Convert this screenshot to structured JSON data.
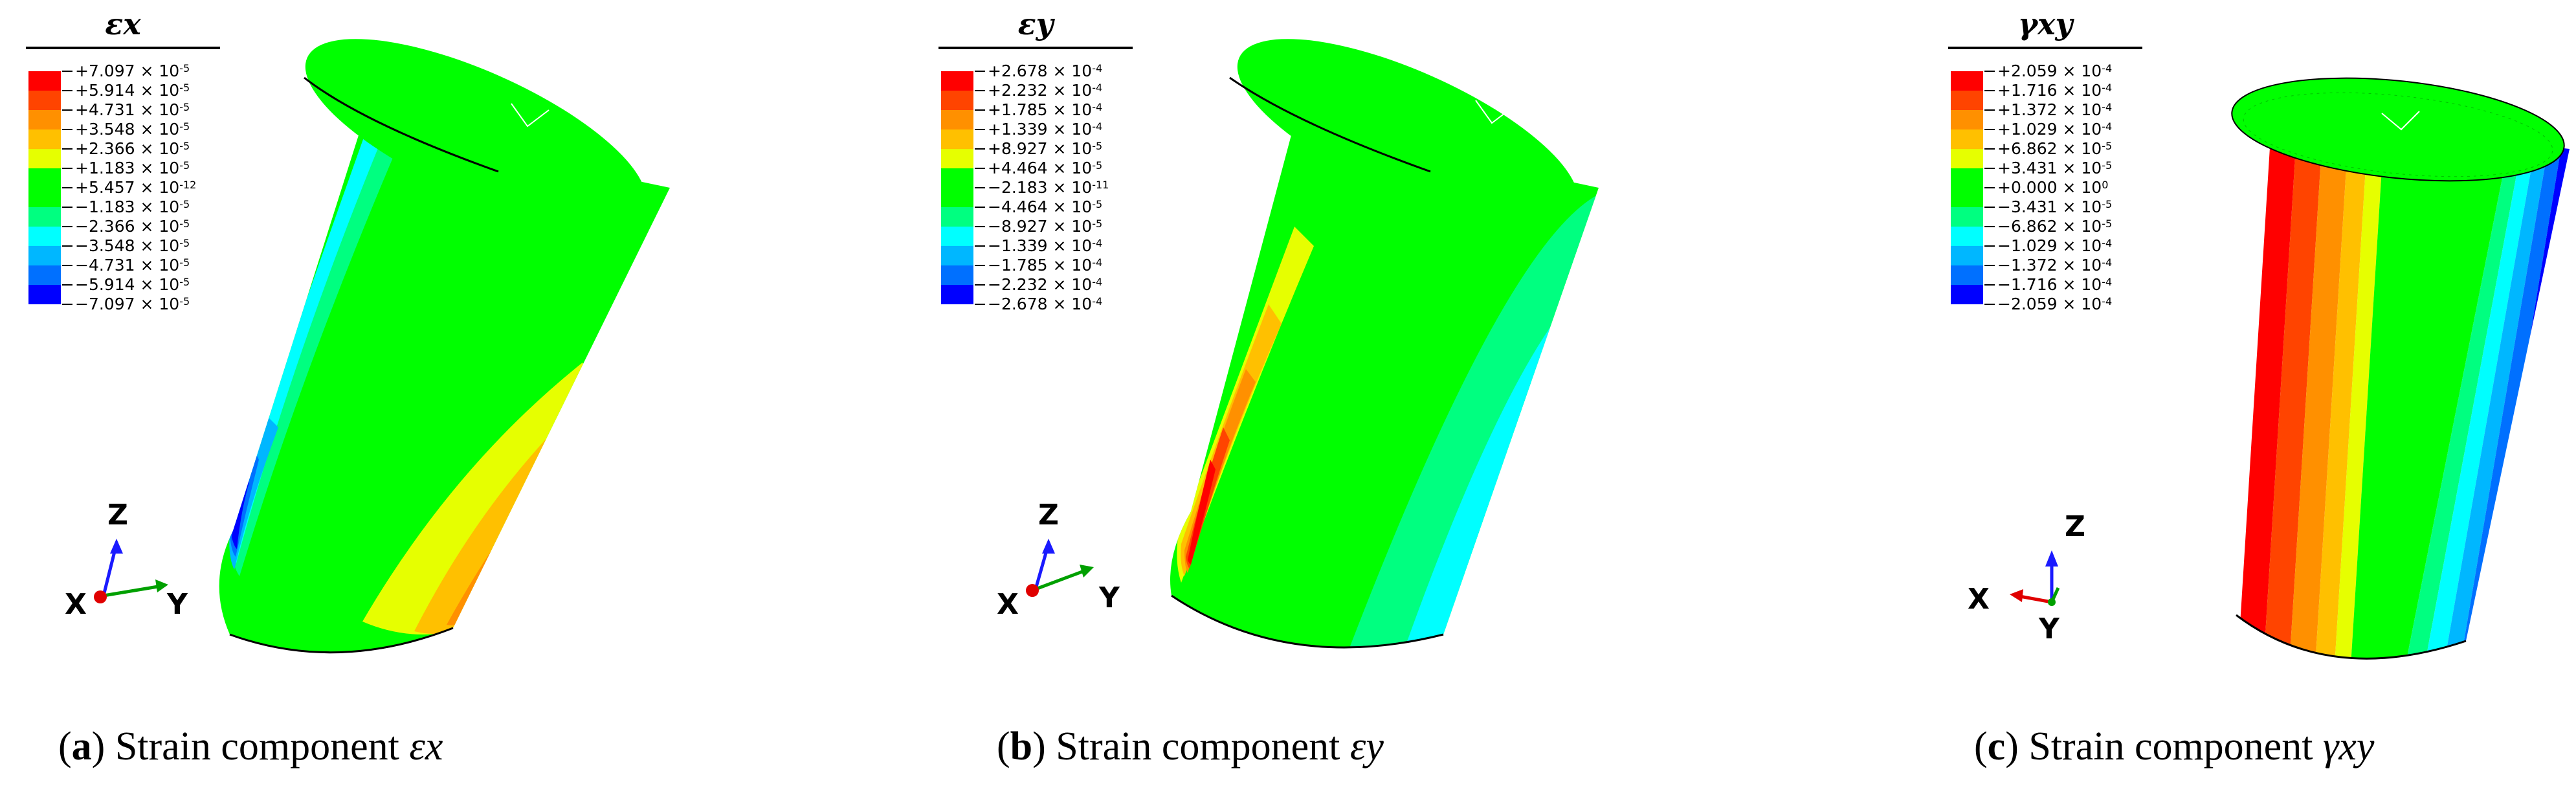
{
  "colors": {
    "scale": [
      "#ff0000",
      "#ff4400",
      "#ff9000",
      "#ffc000",
      "#e6ff00",
      "#00ff00",
      "#00ff00",
      "#00ff80",
      "#00ffff",
      "#00b7ff",
      "#0070ff",
      "#0000ff"
    ],
    "body_green": "#00ff00"
  },
  "panels": [
    {
      "id": "a",
      "legend_title": "εx",
      "legend_labels": [
        {
          "mant": "+7.097",
          "exp": "-5"
        },
        {
          "mant": "+5.914",
          "exp": "-5"
        },
        {
          "mant": "+4.731",
          "exp": "-5"
        },
        {
          "mant": "+3.548",
          "exp": "-5"
        },
        {
          "mant": "+2.366",
          "exp": "-5"
        },
        {
          "mant": "+1.183",
          "exp": "-5"
        },
        {
          "mant": "+5.457",
          "exp": "-12"
        },
        {
          "mant": "−1.183",
          "exp": "-5"
        },
        {
          "mant": "−2.366",
          "exp": "-5"
        },
        {
          "mant": "−3.548",
          "exp": "-5"
        },
        {
          "mant": "−4.731",
          "exp": "-5"
        },
        {
          "mant": "−5.914",
          "exp": "-5"
        },
        {
          "mant": "−7.097",
          "exp": "-5"
        }
      ],
      "triad": {
        "x": "X",
        "y": "Y",
        "z": "Z"
      },
      "caption_letter": "a",
      "caption_text": " Strain component ",
      "caption_symbol": "εx"
    },
    {
      "id": "b",
      "legend_title": "εy",
      "legend_labels": [
        {
          "mant": "+2.678",
          "exp": "-4"
        },
        {
          "mant": "+2.232",
          "exp": "-4"
        },
        {
          "mant": "+1.785",
          "exp": "-4"
        },
        {
          "mant": "+1.339",
          "exp": "-4"
        },
        {
          "mant": "+8.927",
          "exp": "-5"
        },
        {
          "mant": "+4.464",
          "exp": "-5"
        },
        {
          "mant": "−2.183",
          "exp": "-11"
        },
        {
          "mant": "−4.464",
          "exp": "-5"
        },
        {
          "mant": "−8.927",
          "exp": "-5"
        },
        {
          "mant": "−1.339",
          "exp": "-4"
        },
        {
          "mant": "−1.785",
          "exp": "-4"
        },
        {
          "mant": "−2.232",
          "exp": "-4"
        },
        {
          "mant": "−2.678",
          "exp": "-4"
        }
      ],
      "triad": {
        "x": "X",
        "y": "Y",
        "z": "Z"
      },
      "caption_letter": "b",
      "caption_text": " Strain component ",
      "caption_symbol": "εy"
    },
    {
      "id": "c",
      "legend_title": "γxy",
      "legend_labels": [
        {
          "mant": "+2.059",
          "exp": "-4"
        },
        {
          "mant": "+1.716",
          "exp": "-4"
        },
        {
          "mant": "+1.372",
          "exp": "-4"
        },
        {
          "mant": "+1.029",
          "exp": "-4"
        },
        {
          "mant": "+6.862",
          "exp": "-5"
        },
        {
          "mant": "+3.431",
          "exp": "-5"
        },
        {
          "mant": "+0.000",
          "exp": "0"
        },
        {
          "mant": "−3.431",
          "exp": "-5"
        },
        {
          "mant": "−6.862",
          "exp": "-5"
        },
        {
          "mant": "−1.029",
          "exp": "-4"
        },
        {
          "mant": "−1.372",
          "exp": "-4"
        },
        {
          "mant": "−1.716",
          "exp": "-4"
        },
        {
          "mant": "−2.059",
          "exp": "-4"
        }
      ],
      "triad": {
        "x": "X",
        "y": "Y",
        "z": "Z"
      },
      "caption_letter": "c",
      "caption_text": " Strain component ",
      "caption_symbol": "γxy"
    }
  ]
}
